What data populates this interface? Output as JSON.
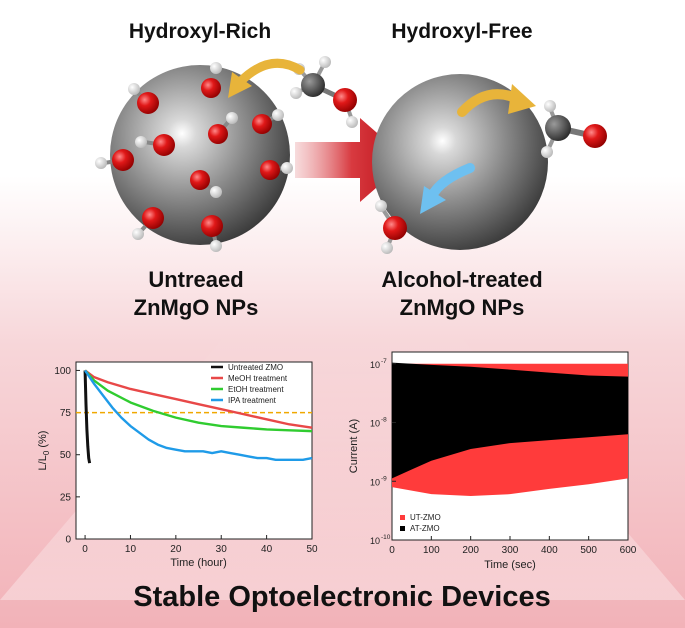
{
  "header": {
    "left_title": "Hydroxyl-Rich",
    "right_title": "Hydroxyl-Free"
  },
  "labels": {
    "left_line1": "Untreaed",
    "left_line2": "ZnMgO NPs",
    "right_line1": "Alcohol-treated",
    "right_line2": "ZnMgO NPs"
  },
  "footer": {
    "title": "Stable Optoelectronic Devices"
  },
  "colors": {
    "background_top": "#ffffff",
    "background_glow": "#f2b2b8",
    "arrow_red": "#c8141c",
    "oxygen_red": "#e01818",
    "carbon_dark": "#3a3a3a",
    "curved_arrow_yellow": "#e8b43a",
    "curved_arrow_blue": "#6ec0f0",
    "dashed_line": "#f0a800"
  },
  "chart_data": [
    {
      "type": "line",
      "xlabel": "Time (hour)",
      "ylabel": "L/L0 (%)",
      "ylabel_main": "L/L",
      "ylabel_sub": "0",
      "ylabel_unit": " (%)",
      "xlim": [
        -2,
        50
      ],
      "ylim": [
        0,
        105
      ],
      "xticks": [
        0,
        10,
        20,
        30,
        40,
        50
      ],
      "yticks": [
        0,
        25,
        50,
        75,
        100
      ],
      "reference_line": 75,
      "legend_position": "top-right",
      "series": [
        {
          "name": "Untreated ZMO",
          "color": "#111111",
          "x": [
            0,
            0.2,
            0.4,
            0.6,
            0.8,
            1.0
          ],
          "y": [
            100,
            80,
            65,
            55,
            48,
            45
          ]
        },
        {
          "name": "MeOH treatment",
          "color": "#e84848",
          "x": [
            0,
            2,
            5,
            10,
            15,
            20,
            25,
            30,
            35,
            40,
            45,
            50
          ],
          "y": [
            100,
            96,
            93,
            89,
            86,
            83,
            80,
            77,
            74,
            71,
            68,
            66
          ]
        },
        {
          "name": "EtOH treatment",
          "color": "#30cc30",
          "x": [
            0,
            2,
            5,
            10,
            15,
            20,
            25,
            30,
            35,
            40,
            45,
            50
          ],
          "y": [
            100,
            94,
            88,
            81,
            76,
            72,
            69,
            67,
            66,
            65,
            64.5,
            64
          ]
        },
        {
          "name": "IPA treatment",
          "color": "#1f9be8",
          "x": [
            0,
            2,
            4,
            6,
            8,
            10,
            12,
            14,
            16,
            18,
            20,
            22,
            24,
            26,
            28,
            30,
            32,
            34,
            36,
            38,
            40,
            42,
            44,
            46,
            48,
            50
          ],
          "y": [
            100,
            92,
            85,
            78,
            72,
            67,
            63,
            59,
            56,
            54,
            53,
            52,
            52,
            52,
            51,
            52,
            51,
            50,
            49,
            48,
            48,
            47,
            47,
            47,
            47,
            48
          ]
        }
      ]
    },
    {
      "type": "area",
      "xlabel": "Time (sec)",
      "ylabel": "Current (A)",
      "yscale": "log",
      "xlim": [
        0,
        600
      ],
      "ylim_exp": [
        -10,
        -6.8
      ],
      "xticks": [
        0,
        100,
        200,
        300,
        400,
        500,
        600
      ],
      "yticks_exp": [
        -10,
        -9,
        -8,
        -7
      ],
      "ytick_labels": [
        "10",
        "10",
        "10",
        "10"
      ],
      "ytick_sups": [
        "-10",
        "-9",
        "-8",
        "-7"
      ],
      "legend_position": "bottom-left",
      "series": [
        {
          "name": "UT-ZMO",
          "color": "#ff3b3b",
          "x": [
            0,
            100,
            200,
            300,
            400,
            500,
            600
          ],
          "upper_exp": [
            -7.0,
            -7.0,
            -7.0,
            -7.0,
            -7.0,
            -7.0,
            -7.0
          ],
          "lower_exp": [
            -9.1,
            -9.22,
            -9.25,
            -9.22,
            -9.13,
            -9.05,
            -8.95
          ]
        },
        {
          "name": "AT-ZMO",
          "color": "#000000",
          "x": [
            0,
            50,
            100,
            200,
            300,
            400,
            500,
            600
          ],
          "upper_exp": [
            -6.98,
            -7.0,
            -7.02,
            -7.05,
            -7.1,
            -7.15,
            -7.2,
            -7.22
          ],
          "lower_exp": [
            -8.95,
            -8.8,
            -8.65,
            -8.45,
            -8.35,
            -8.3,
            -8.25,
            -8.2
          ]
        }
      ]
    }
  ]
}
